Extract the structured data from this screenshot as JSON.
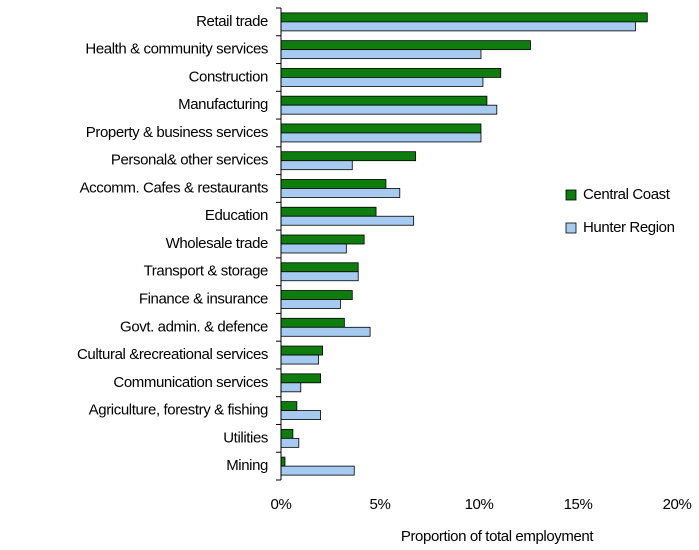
{
  "chart_data": {
    "type": "hbar",
    "x_label": "Proportion of total employment",
    "categories": [
      "Retail trade",
      "Health & community services",
      "Construction",
      "Manufacturing",
      "Property & business services",
      "Personal& other services",
      "Accomm. Cafes & restaurants",
      "Education",
      "Wholesale trade",
      "Transport & storage",
      "Finance & insurance",
      "Govt. admin. & defence",
      "Cultural &recreational services",
      "Communication services",
      "Agriculture, forestry & fishing",
      "Utilities",
      "Mining"
    ],
    "series": [
      {
        "name": "Central Coast",
        "color": "#0e7d0e",
        "values": [
          18.5,
          12.6,
          11.1,
          10.4,
          10.1,
          6.8,
          5.3,
          4.8,
          4.2,
          3.9,
          3.6,
          3.2,
          2.1,
          2.0,
          0.8,
          0.6,
          0.2
        ]
      },
      {
        "name": "Hunter Region",
        "color": "#a6caf0",
        "values": [
          17.9,
          10.1,
          10.2,
          10.9,
          10.1,
          3.6,
          6.0,
          6.7,
          3.3,
          3.9,
          3.0,
          4.5,
          1.9,
          1.0,
          2.0,
          0.9,
          3.7
        ]
      }
    ],
    "xlim": [
      0,
      20
    ],
    "xticks": [
      {
        "value": 0,
        "label": "0%"
      },
      {
        "value": 5,
        "label": "5%"
      },
      {
        "value": 10,
        "label": "10%"
      },
      {
        "value": 15,
        "label": "15%"
      },
      {
        "value": 20,
        "label": "20%"
      }
    ],
    "legend": "right"
  }
}
